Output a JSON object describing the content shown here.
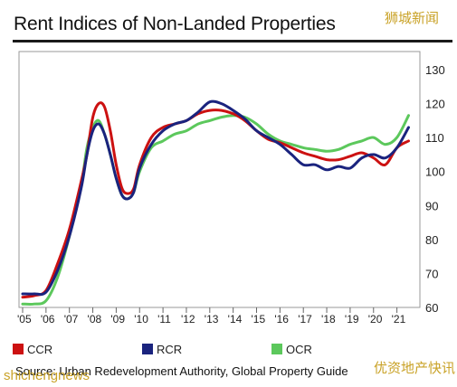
{
  "watermarks": {
    "top_right": "狮城新闻",
    "bottom_left": "shichengnews",
    "bottom_right": "优资地产快讯"
  },
  "source": "Source: Urban Redevelopment Authority, Global Property Guide",
  "colors": {
    "title_bar": "#1a1a1a",
    "frame": "#999999",
    "watermark": "#c9a227"
  },
  "chart_data": {
    "type": "line",
    "title": "Rent Indices of Non-Landed Properties",
    "xlabel": "",
    "ylabel": "",
    "x_tick_labels": [
      "'05",
      "'06",
      "'07",
      "'08",
      "'09",
      "'10",
      "'11",
      "'12",
      "'13",
      "'14",
      "'15",
      "'16",
      "'17",
      "'18",
      "'19",
      "'20",
      "'21"
    ],
    "y_ticks": [
      60,
      70,
      80,
      90,
      100,
      110,
      120,
      130
    ],
    "ylim": [
      60,
      130
    ],
    "xlim": [
      2005.0,
      2021.75
    ],
    "grid": false,
    "legend_position": "bottom",
    "series": [
      {
        "name": "CCR",
        "color": "#cc1111",
        "x": [
          2005.0,
          2005.5,
          2006.0,
          2006.5,
          2007.0,
          2007.5,
          2007.75,
          2008.0,
          2008.25,
          2008.5,
          2008.75,
          2009.0,
          2009.25,
          2009.5,
          2009.75,
          2010.0,
          2010.5,
          2011.0,
          2011.5,
          2012.0,
          2012.5,
          2013.0,
          2013.5,
          2014.0,
          2014.5,
          2015.0,
          2015.5,
          2016.0,
          2016.5,
          2017.0,
          2017.5,
          2018.0,
          2018.5,
          2019.0,
          2019.5,
          2020.0,
          2020.5,
          2021.0,
          2021.5
        ],
        "y": [
          63,
          63.5,
          65,
          73,
          83,
          97,
          105,
          116,
          120,
          119,
          112,
          102,
          95,
          93.5,
          95,
          102,
          110,
          113,
          114,
          115,
          117,
          118,
          118,
          117,
          115,
          112,
          109.5,
          108.5,
          107,
          105.5,
          104.5,
          103.5,
          103.5,
          104.5,
          105.5,
          104,
          102,
          107,
          109
        ]
      },
      {
        "name": "RCR",
        "color": "#1a237e",
        "x": [
          2005.0,
          2005.5,
          2006.0,
          2006.5,
          2007.0,
          2007.5,
          2007.75,
          2008.0,
          2008.25,
          2008.5,
          2008.75,
          2009.0,
          2009.25,
          2009.5,
          2009.75,
          2010.0,
          2010.5,
          2011.0,
          2011.5,
          2012.0,
          2012.5,
          2013.0,
          2013.5,
          2014.0,
          2014.5,
          2015.0,
          2015.5,
          2016.0,
          2016.5,
          2017.0,
          2017.5,
          2018.0,
          2018.5,
          2019.0,
          2019.5,
          2020.0,
          2020.5,
          2021.0,
          2021.5
        ],
        "y": [
          64,
          64,
          64.5,
          71,
          81,
          95,
          105,
          112,
          114,
          111,
          105,
          98,
          93,
          92,
          94,
          101,
          108,
          112,
          114,
          115,
          117.5,
          120.5,
          120,
          118,
          115.5,
          112,
          110,
          108,
          105,
          102,
          102,
          100.5,
          101.5,
          101,
          104,
          105,
          104,
          107,
          113
        ]
      },
      {
        "name": "OCR",
        "color": "#5cc85c",
        "x": [
          2005.0,
          2005.5,
          2006.0,
          2006.5,
          2007.0,
          2007.5,
          2007.75,
          2008.0,
          2008.25,
          2008.5,
          2008.75,
          2009.0,
          2009.25,
          2009.5,
          2009.75,
          2010.0,
          2010.5,
          2011.0,
          2011.5,
          2012.0,
          2012.5,
          2013.0,
          2013.5,
          2014.0,
          2014.5,
          2015.0,
          2015.5,
          2016.0,
          2016.5,
          2017.0,
          2017.5,
          2018.0,
          2018.5,
          2019.0,
          2019.5,
          2020.0,
          2020.5,
          2021.0,
          2021.5
        ],
        "y": [
          61,
          61,
          62,
          69,
          81,
          96,
          107,
          113,
          115,
          111,
          105,
          98,
          93,
          92,
          94,
          100,
          107,
          109,
          111,
          112,
          114,
          115,
          116,
          116.5,
          116,
          114,
          111,
          109,
          108,
          107,
          106.5,
          106,
          106.5,
          108,
          109,
          110,
          108,
          110,
          116.5
        ]
      }
    ]
  }
}
